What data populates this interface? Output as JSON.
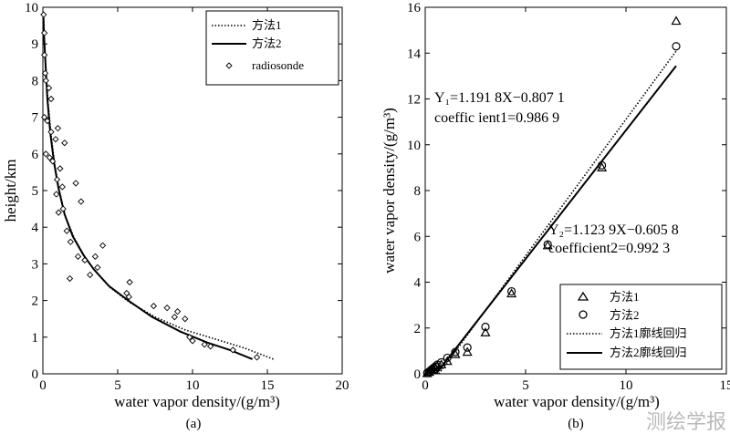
{
  "chart_data": [
    {
      "type": "line",
      "panel_label": "(a)",
      "xlabel": "water vapor density/(g/m³)",
      "ylabel": "height/km",
      "xlim": [
        0,
        20
      ],
      "ylim": [
        0,
        10
      ],
      "xticks": [
        "0",
        "5",
        "10",
        "15",
        "20"
      ],
      "yticks": [
        "0",
        "1",
        "2",
        "3",
        "4",
        "5",
        "6",
        "7",
        "8",
        "9",
        "10"
      ],
      "legend": [
        "方法1",
        "方法2",
        "radiosonde"
      ],
      "series": [
        {
          "name": "方法1",
          "style": "dotted",
          "points": [
            [
              15.4,
              0.4
            ],
            [
              13.5,
              0.7
            ],
            [
              11.5,
              0.95
            ],
            [
              9.5,
              1.2
            ],
            [
              7.5,
              1.55
            ],
            [
              5.8,
              1.95
            ],
            [
              4.5,
              2.35
            ],
            [
              3.5,
              2.8
            ],
            [
              2.8,
              3.2
            ],
            [
              2.1,
              3.7
            ],
            [
              1.5,
              4.3
            ],
            [
              1.1,
              5.0
            ],
            [
              0.8,
              5.7
            ],
            [
              0.55,
              6.5
            ],
            [
              0.35,
              7.4
            ],
            [
              0.2,
              8.3
            ],
            [
              0.1,
              9.1
            ],
            [
              0.05,
              9.7
            ]
          ]
        },
        {
          "name": "方法2",
          "style": "solid",
          "points": [
            [
              14.0,
              0.4
            ],
            [
              12.5,
              0.65
            ],
            [
              11.0,
              0.85
            ],
            [
              9.2,
              1.15
            ],
            [
              7.3,
              1.55
            ],
            [
              5.7,
              2.0
            ],
            [
              4.4,
              2.4
            ],
            [
              3.4,
              2.85
            ],
            [
              2.7,
              3.25
            ],
            [
              2.0,
              3.75
            ],
            [
              1.45,
              4.35
            ],
            [
              1.05,
              5.05
            ],
            [
              0.75,
              5.75
            ],
            [
              0.5,
              6.55
            ],
            [
              0.3,
              7.5
            ],
            [
              0.18,
              8.4
            ],
            [
              0.08,
              9.2
            ],
            [
              0.03,
              9.8
            ]
          ]
        },
        {
          "name": "radiosonde",
          "style": "marker",
          "points": [
            [
              0.05,
              9.8
            ],
            [
              0.1,
              9.3
            ],
            [
              0.1,
              8.7
            ],
            [
              0.15,
              8.2
            ],
            [
              0.2,
              8.0
            ],
            [
              0.4,
              7.8
            ],
            [
              0.55,
              7.5
            ],
            [
              0.1,
              7.0
            ],
            [
              0.3,
              6.9
            ],
            [
              0.55,
              6.6
            ],
            [
              1.0,
              6.7
            ],
            [
              0.85,
              6.4
            ],
            [
              1.45,
              6.3
            ],
            [
              0.2,
              6.0
            ],
            [
              0.45,
              5.9
            ],
            [
              0.65,
              5.8
            ],
            [
              1.15,
              5.6
            ],
            [
              0.95,
              5.3
            ],
            [
              1.3,
              5.1
            ],
            [
              2.2,
              5.2
            ],
            [
              0.9,
              4.9
            ],
            [
              1.35,
              4.5
            ],
            [
              2.55,
              4.7
            ],
            [
              1.05,
              4.4
            ],
            [
              1.6,
              3.9
            ],
            [
              1.85,
              3.6
            ],
            [
              4.0,
              3.5
            ],
            [
              2.35,
              3.2
            ],
            [
              2.8,
              3.1
            ],
            [
              3.5,
              3.2
            ],
            [
              3.65,
              2.9
            ],
            [
              3.15,
              2.7
            ],
            [
              1.8,
              2.6
            ],
            [
              5.8,
              2.5
            ],
            [
              5.6,
              2.2
            ],
            [
              5.75,
              2.1
            ],
            [
              7.4,
              1.85
            ],
            [
              8.3,
              1.8
            ],
            [
              9.0,
              1.7
            ],
            [
              8.8,
              1.55
            ],
            [
              9.5,
              1.5
            ],
            [
              9.8,
              1.0
            ],
            [
              10.0,
              0.9
            ],
            [
              10.8,
              0.8
            ],
            [
              11.2,
              0.75
            ],
            [
              12.7,
              0.65
            ],
            [
              14.3,
              0.45
            ]
          ]
        }
      ]
    },
    {
      "type": "scatter",
      "panel_label": "(b)",
      "xlabel": "water vapor density/(g/m³)",
      "ylabel": "water vapor density/(g/m³)",
      "xlim": [
        0,
        15
      ],
      "ylim": [
        0,
        16
      ],
      "xticks": [
        "0",
        "5",
        "10",
        "15"
      ],
      "yticks": [
        "0",
        "2",
        "4",
        "6",
        "8",
        "10",
        "12",
        "14",
        "16"
      ],
      "legend": [
        "方法1",
        "方法2",
        "方法1廓线回归",
        "方法2廓线回归"
      ],
      "annotation1": {
        "eq": "Y₁=1.191 8X−0.807 1",
        "coef": "coeffic ient1=0.986 9"
      },
      "annotation2": {
        "eq": "Y₂=1.123 9X−0.605 8",
        "coef": "coefficient2=0.992 3"
      },
      "series": [
        {
          "name": "方法1",
          "marker": "triangle",
          "points": [
            [
              0.1,
              0.02
            ],
            [
              0.2,
              0.08
            ],
            [
              0.3,
              0.15
            ],
            [
              0.4,
              0.2
            ],
            [
              0.5,
              0.28
            ],
            [
              0.6,
              0.35
            ],
            [
              0.8,
              0.4
            ],
            [
              1.1,
              0.55
            ],
            [
              1.5,
              0.85
            ],
            [
              2.1,
              0.95
            ],
            [
              3.0,
              1.8
            ],
            [
              4.3,
              3.5
            ],
            [
              6.1,
              5.6
            ],
            [
              8.8,
              9.0
            ],
            [
              12.5,
              15.4
            ]
          ]
        },
        {
          "name": "方法2",
          "marker": "circle",
          "points": [
            [
              0.1,
              0.04
            ],
            [
              0.2,
              0.1
            ],
            [
              0.3,
              0.18
            ],
            [
              0.4,
              0.25
            ],
            [
              0.5,
              0.32
            ],
            [
              0.6,
              0.4
            ],
            [
              0.8,
              0.5
            ],
            [
              1.1,
              0.7
            ],
            [
              1.5,
              0.95
            ],
            [
              2.1,
              1.15
            ],
            [
              3.0,
              2.05
            ],
            [
              4.3,
              3.6
            ],
            [
              6.1,
              5.65
            ],
            [
              8.8,
              9.1
            ],
            [
              12.5,
              14.3
            ]
          ]
        },
        {
          "name": "方法1廓线回归",
          "style": "dotted",
          "slope": 1.1918,
          "intercept": -0.8071,
          "x_range": [
            0,
            12.5
          ]
        },
        {
          "name": "方法2廓线回归",
          "style": "solid",
          "slope": 1.1239,
          "intercept": -0.6058,
          "x_range": [
            0,
            12.5
          ]
        }
      ]
    }
  ],
  "watermark": "测绘学报"
}
